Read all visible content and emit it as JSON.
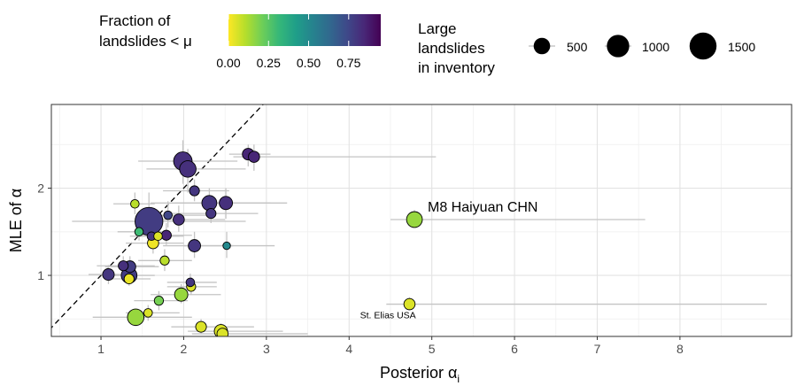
{
  "chart_data": {
    "type": "scatter",
    "xlabel_main": "Posterior α",
    "xlabel_sub": "i",
    "ylabel": "MLE of α",
    "xlim": [
      0.4,
      9.35
    ],
    "ylim": [
      0.3,
      2.96
    ],
    "x_ticks": [
      1,
      2,
      3,
      4,
      5,
      6,
      7,
      8
    ],
    "y_ticks": [
      1,
      2
    ],
    "grid": true,
    "reference_line": {
      "type": "identity",
      "style": "dashed"
    },
    "legend_placement": "top",
    "color_legend": {
      "title_lines": [
        "Fraction of",
        "landslides < μ"
      ],
      "ticks": [
        "0.00",
        "0.25",
        "0.50",
        "0.75"
      ],
      "tick_values": [
        0.0,
        0.25,
        0.5,
        0.75
      ],
      "range": [
        0.0,
        0.95
      ],
      "palette": [
        "#fde725",
        "#b5de2b",
        "#6ece58",
        "#35b779",
        "#1f9e89",
        "#26828e",
        "#31688e",
        "#3e4989",
        "#482878",
        "#440154"
      ]
    },
    "size_legend": {
      "title_lines": [
        "Large",
        "landslides",
        "in inventory"
      ],
      "values": [
        500,
        1000,
        1500
      ],
      "labels": [
        "500",
        "1000",
        "1500"
      ]
    },
    "annotations": [
      {
        "text": "M8 Haiyuan CHN",
        "x": 4.95,
        "y": 1.79,
        "size": "large"
      },
      {
        "text": "St. Elias USA",
        "x": 4.47,
        "y": 0.55,
        "size": "small"
      }
    ],
    "points": [
      {
        "x": 1.58,
        "y": 1.62,
        "x_lo": 0.65,
        "x_hi": 2.75,
        "y_lo": 1.35,
        "y_hi": 1.95,
        "n": 1600,
        "frac": 0.78
      },
      {
        "x": 1.99,
        "y": 2.31,
        "x_lo": 1.45,
        "x_hi": 2.65,
        "y_lo": 2.05,
        "y_hi": 2.55,
        "n": 650,
        "frac": 0.82
      },
      {
        "x": 2.05,
        "y": 2.22,
        "x_lo": 1.55,
        "x_hi": 2.75,
        "y_lo": 1.95,
        "y_hi": 2.45,
        "n": 500,
        "frac": 0.82
      },
      {
        "x": 2.78,
        "y": 2.39,
        "x_lo": 2.55,
        "x_hi": 3.05,
        "y_lo": 2.25,
        "y_hi": 2.5,
        "n": 220,
        "frac": 0.85
      },
      {
        "x": 2.85,
        "y": 2.36,
        "x_lo": 2.6,
        "x_hi": 5.05,
        "y_lo": 2.2,
        "y_hi": 2.5,
        "n": 200,
        "frac": 0.85
      },
      {
        "x": 2.13,
        "y": 1.97,
        "x_lo": 1.75,
        "x_hi": 2.55,
        "y_lo": 1.85,
        "y_hi": 2.1,
        "n": 150,
        "frac": 0.8
      },
      {
        "x": 2.31,
        "y": 1.83,
        "x_lo": 1.6,
        "x_hi": 3.05,
        "y_lo": 1.65,
        "y_hi": 2.0,
        "n": 400,
        "frac": 0.8
      },
      {
        "x": 2.51,
        "y": 1.83,
        "x_lo": 1.9,
        "x_hi": 3.25,
        "y_lo": 1.65,
        "y_hi": 2.0,
        "n": 300,
        "frac": 0.82
      },
      {
        "x": 2.33,
        "y": 1.71,
        "x_lo": 1.8,
        "x_hi": 2.9,
        "y_lo": 1.6,
        "y_hi": 1.85,
        "n": 150,
        "frac": 0.8
      },
      {
        "x": 1.94,
        "y": 1.64,
        "x_lo": 1.45,
        "x_hi": 2.5,
        "y_lo": 1.5,
        "y_hi": 1.8,
        "n": 200,
        "frac": 0.82
      },
      {
        "x": 1.81,
        "y": 1.69,
        "x_lo": 1.45,
        "x_hi": 2.3,
        "y_lo": 1.55,
        "y_hi": 1.85,
        "n": 100,
        "frac": 0.75
      },
      {
        "x": 1.41,
        "y": 1.82,
        "x_lo": 1.15,
        "x_hi": 1.65,
        "y_lo": 1.7,
        "y_hi": 1.95,
        "n": 100,
        "frac": 0.1
      },
      {
        "x": 1.46,
        "y": 1.5,
        "x_lo": 1.2,
        "x_hi": 1.8,
        "y_lo": 1.4,
        "y_hi": 1.62,
        "n": 100,
        "frac": 0.3
      },
      {
        "x": 1.61,
        "y": 1.45,
        "x_lo": 1.35,
        "x_hi": 1.95,
        "y_lo": 1.35,
        "y_hi": 1.55,
        "n": 100,
        "frac": 0.8
      },
      {
        "x": 1.69,
        "y": 1.45,
        "x_lo": 1.4,
        "x_hi": 2.0,
        "y_lo": 1.35,
        "y_hi": 1.55,
        "n": 100,
        "frac": 0.05
      },
      {
        "x": 1.63,
        "y": 1.37,
        "x_lo": 1.3,
        "x_hi": 2.0,
        "y_lo": 1.25,
        "y_hi": 1.5,
        "n": 200,
        "frac": 0.02
      },
      {
        "x": 1.79,
        "y": 1.46,
        "x_lo": 1.5,
        "x_hi": 2.1,
        "y_lo": 1.35,
        "y_hi": 1.6,
        "n": 150,
        "frac": 0.85
      },
      {
        "x": 2.13,
        "y": 1.34,
        "x_lo": 1.75,
        "x_hi": 2.6,
        "y_lo": 1.2,
        "y_hi": 1.5,
        "n": 250,
        "frac": 0.8
      },
      {
        "x": 2.52,
        "y": 1.34,
        "x_lo": 2.0,
        "x_hi": 3.1,
        "y_lo": 1.2,
        "y_hi": 1.5,
        "n": 70,
        "frac": 0.5
      },
      {
        "x": 4.79,
        "y": 1.64,
        "x_lo": 4.5,
        "x_hi": 7.58,
        "y_lo": 1.55,
        "y_hi": 1.75,
        "n": 450,
        "frac": 0.15
      },
      {
        "x": 1.77,
        "y": 1.17,
        "x_lo": 1.45,
        "x_hi": 2.1,
        "y_lo": 1.05,
        "y_hi": 1.3,
        "n": 120,
        "frac": 0.1
      },
      {
        "x": 1.09,
        "y": 1.01,
        "x_lo": 0.85,
        "x_hi": 1.35,
        "y_lo": 0.9,
        "y_hi": 1.12,
        "n": 220,
        "frac": 0.8
      },
      {
        "x": 1.27,
        "y": 1.11,
        "x_lo": 0.95,
        "x_hi": 1.65,
        "y_lo": 1.0,
        "y_hi": 1.22,
        "n": 150,
        "frac": 0.82
      },
      {
        "x": 1.35,
        "y": 1.1,
        "x_lo": 1.05,
        "x_hi": 1.7,
        "y_lo": 1.0,
        "y_hi": 1.22,
        "n": 220,
        "frac": 0.78
      },
      {
        "x": 1.34,
        "y": 1.0,
        "x_lo": 1.05,
        "x_hi": 1.65,
        "y_lo": 0.9,
        "y_hi": 1.1,
        "n": 450,
        "frac": 0.78
      },
      {
        "x": 1.34,
        "y": 0.96,
        "x_lo": 1.1,
        "x_hi": 1.6,
        "y_lo": 0.88,
        "y_hi": 1.05,
        "n": 150,
        "frac": 0.03
      },
      {
        "x": 2.08,
        "y": 0.92,
        "x_lo": 1.8,
        "x_hi": 2.4,
        "y_lo": 0.82,
        "y_hi": 1.02,
        "n": 100,
        "frac": 0.8
      },
      {
        "x": 2.09,
        "y": 0.87,
        "x_lo": 1.8,
        "x_hi": 2.4,
        "y_lo": 0.78,
        "y_hi": 0.98,
        "n": 120,
        "frac": 0.05
      },
      {
        "x": 1.97,
        "y": 0.78,
        "x_lo": 1.6,
        "x_hi": 2.45,
        "y_lo": 0.68,
        "y_hi": 0.9,
        "n": 300,
        "frac": 0.15
      },
      {
        "x": 1.7,
        "y": 0.71,
        "x_lo": 1.4,
        "x_hi": 2.05,
        "y_lo": 0.6,
        "y_hi": 0.82,
        "n": 120,
        "frac": 0.2
      },
      {
        "x": 4.73,
        "y": 0.67,
        "x_lo": 4.45,
        "x_hi": 9.05,
        "y_lo": 0.6,
        "y_hi": 0.75,
        "n": 200,
        "frac": 0.05
      },
      {
        "x": 1.57,
        "y": 0.57,
        "x_lo": 1.3,
        "x_hi": 1.95,
        "y_lo": 0.48,
        "y_hi": 0.66,
        "n": 100,
        "frac": 0.05
      },
      {
        "x": 1.42,
        "y": 0.52,
        "x_lo": 0.9,
        "x_hi": 2.1,
        "y_lo": 0.42,
        "y_hi": 0.62,
        "n": 500,
        "frac": 0.15
      },
      {
        "x": 2.21,
        "y": 0.41,
        "x_lo": 1.85,
        "x_hi": 2.85,
        "y_lo": 0.33,
        "y_hi": 0.5,
        "n": 180,
        "frac": 0.05
      },
      {
        "x": 2.45,
        "y": 0.36,
        "x_lo": 2.05,
        "x_hi": 3.2,
        "y_lo": 0.28,
        "y_hi": 0.45,
        "n": 300,
        "frac": 0.05
      },
      {
        "x": 2.47,
        "y": 0.33,
        "x_lo": 2.1,
        "x_hi": 3.5,
        "y_lo": 0.26,
        "y_hi": 0.42,
        "n": 200,
        "frac": 0.05
      }
    ]
  }
}
